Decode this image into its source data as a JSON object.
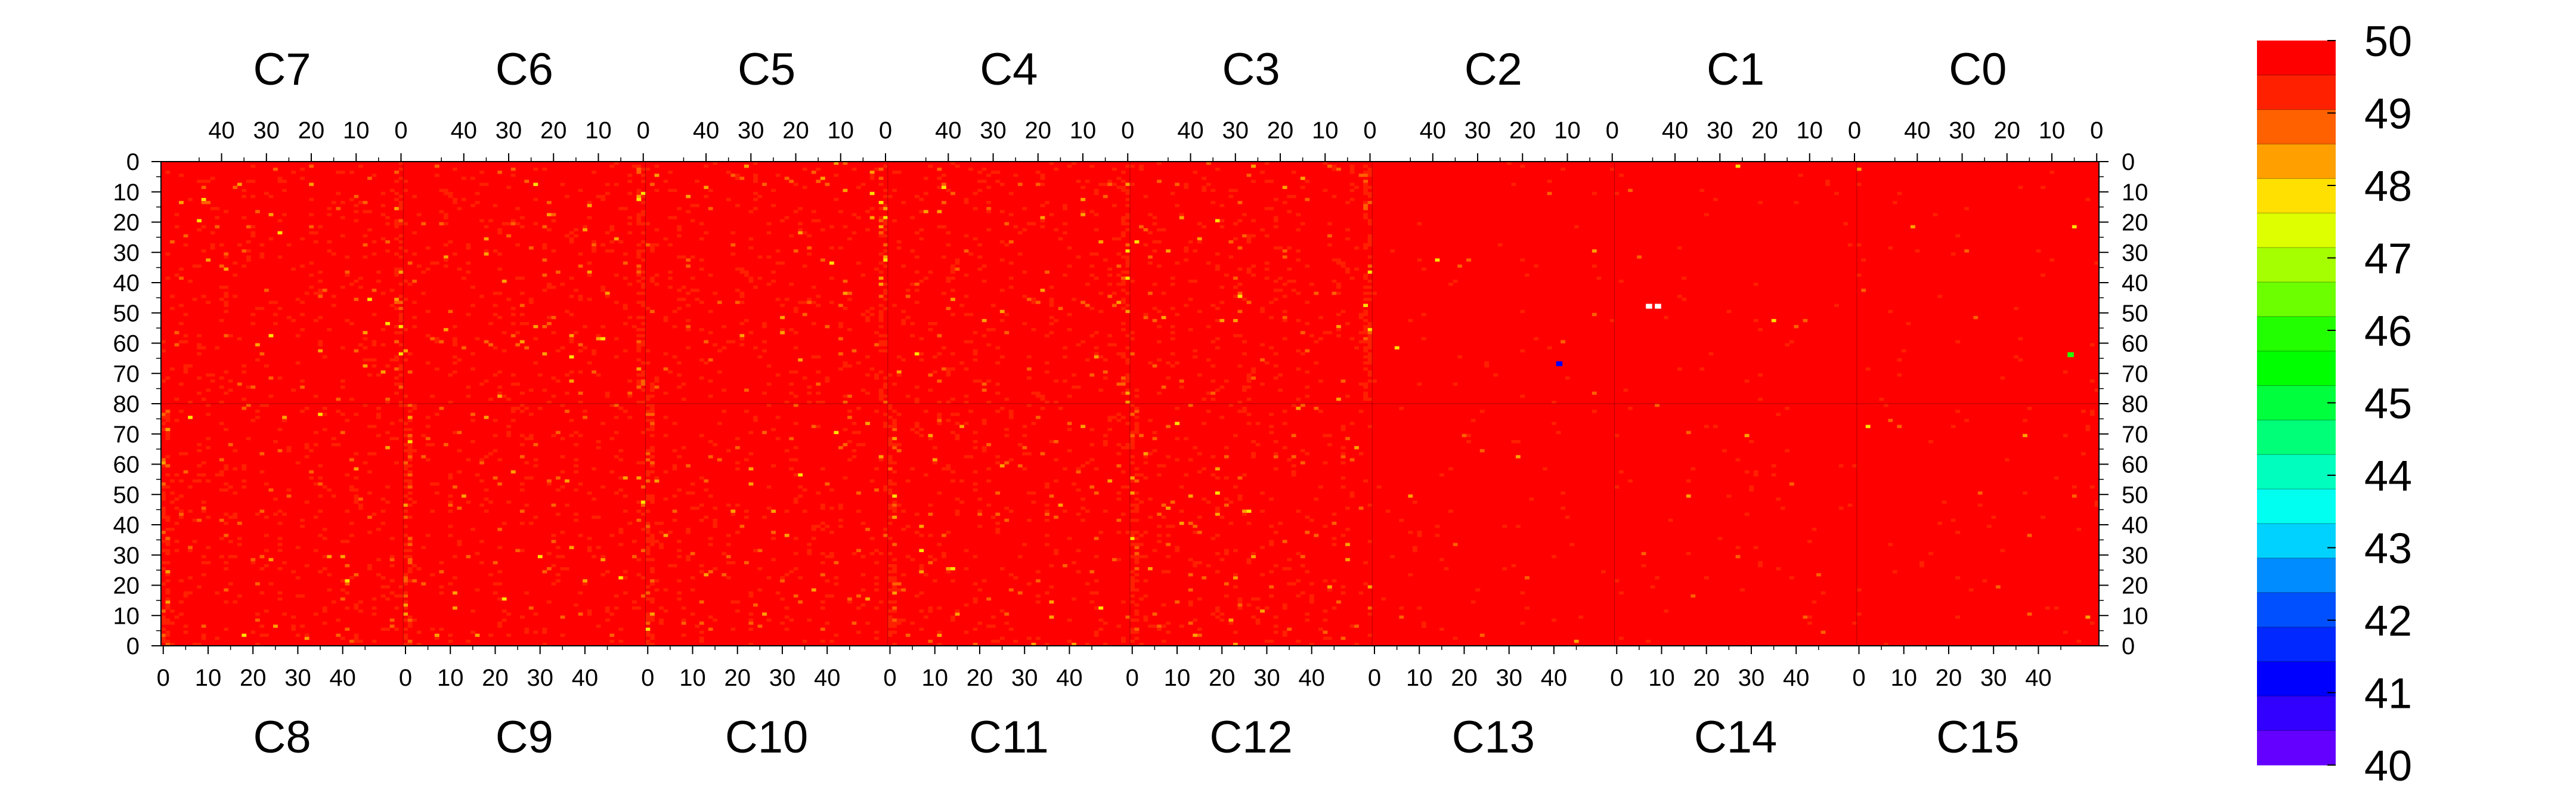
{
  "chart_data": {
    "type": "heatmap",
    "title": "",
    "top_row_chips": [
      "C7",
      "C6",
      "C5",
      "C4",
      "C3",
      "C2",
      "C1",
      "C0"
    ],
    "bottom_row_chips": [
      "C8",
      "C9",
      "C10",
      "C11",
      "C12",
      "C13",
      "C14",
      "C15"
    ],
    "chip_columns": 54,
    "rows_per_half": 80,
    "top_axis_ticks": [
      "40",
      "30",
      "20",
      "10",
      "0"
    ],
    "bottom_axis_ticks": [
      "0",
      "10",
      "20",
      "30",
      "40"
    ],
    "left_axis_ticks": [
      "0",
      "10",
      "20",
      "30",
      "40",
      "50",
      "60",
      "70",
      "80",
      "70",
      "60",
      "50",
      "40",
      "30",
      "20",
      "10",
      "0"
    ],
    "right_axis_ticks": [
      "0",
      "10",
      "20",
      "30",
      "40",
      "50",
      "60",
      "70",
      "80",
      "70",
      "60",
      "50",
      "40",
      "30",
      "20",
      "10",
      "0"
    ],
    "colorbar": {
      "min": 40,
      "max": 50,
      "labels": [
        "50",
        "49",
        "48",
        "47",
        "46",
        "45",
        "44",
        "43",
        "42",
        "41",
        "40"
      ],
      "colors": [
        "#ff0000",
        "#ff2000",
        "#ff6000",
        "#ffa000",
        "#ffe000",
        "#ddff00",
        "#a6ff00",
        "#6cff00",
        "#22ff00",
        "#00ff00",
        "#00ff3c",
        "#00ff78",
        "#00ffbe",
        "#00fff0",
        "#00d2ff",
        "#008cff",
        "#0050ff",
        "#0028ff",
        "#0000ff",
        "#3200ff",
        "#6400ff"
      ]
    },
    "base_value": 50,
    "column_patterns": "chip column 0 (edge) noisier; chips C0, C1, C2 (top) and C13, C14, C15 (bottom) mostly uniform at 50",
    "outliers": [
      {
        "chip": "C1",
        "column": 46,
        "row": 47,
        "value": 40
      },
      {
        "chip": "C1",
        "column": 44,
        "row": 47,
        "value": 40
      },
      {
        "chip": "C2",
        "column": 12,
        "row": 66,
        "value": 41
      },
      {
        "chip": "C0",
        "column": 6,
        "row": 63,
        "value": 46
      }
    ]
  }
}
